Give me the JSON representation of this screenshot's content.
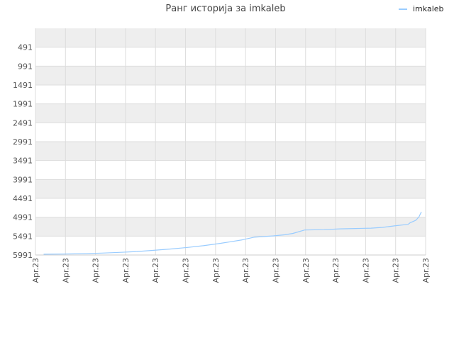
{
  "chart_data": {
    "type": "line",
    "title": "Ранг историја за imkaleb",
    "legend": {
      "label": "imkaleb",
      "placement": "top-right"
    },
    "y_axis": {
      "reversed": true,
      "range": [
        -9,
        5991
      ],
      "tick_labels": [
        "491",
        "991",
        "1491",
        "1991",
        "2491",
        "2991",
        "3491",
        "3991",
        "4491",
        "4991",
        "5491",
        "5991"
      ],
      "tick_values": [
        491,
        991,
        1491,
        1991,
        2491,
        2991,
        3491,
        3991,
        4491,
        4991,
        5491,
        5991
      ]
    },
    "x_axis": {
      "tick_labels": [
        "Apr.23",
        "Apr.23",
        "Apr.23",
        "Apr.23",
        "Apr.23",
        "Apr.23",
        "Apr.23",
        "Apr.23",
        "Apr.23",
        "Apr.23",
        "Apr.23",
        "Apr.23",
        "Apr.23",
        "Apr.23"
      ]
    },
    "grid": true,
    "series": [
      {
        "name": "imkaleb",
        "color": "#99ccff",
        "x": [
          0.021,
          0.07,
          0.13,
          0.17,
          0.22,
          0.26,
          0.3,
          0.35,
          0.39,
          0.43,
          0.47,
          0.5,
          0.53,
          0.56,
          0.61,
          0.64,
          0.66,
          0.69,
          0.74,
          0.78,
          0.82,
          0.86,
          0.89,
          0.92,
          0.955,
          0.96,
          0.975,
          0.983,
          0.989
        ],
        "y": [
          5970,
          5965,
          5955,
          5940,
          5920,
          5900,
          5870,
          5830,
          5790,
          5745,
          5690,
          5640,
          5590,
          5520,
          5485,
          5455,
          5420,
          5330,
          5320,
          5300,
          5290,
          5280,
          5260,
          5220,
          5180,
          5140,
          5070,
          4980,
          4850
        ]
      }
    ]
  }
}
